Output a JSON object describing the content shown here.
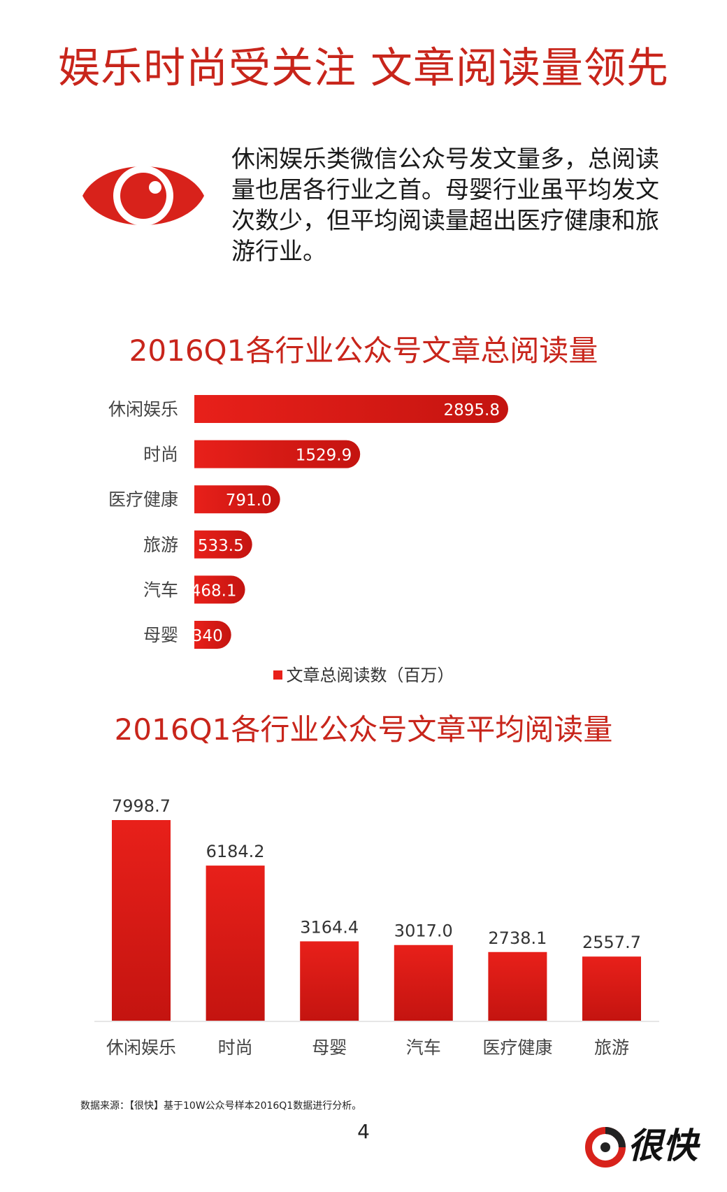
{
  "title": "娱乐时尚受关注 文章阅读量领先",
  "intro": "休闲娱乐类微信公众号发文量多，总阅读量也居各行业之首。母婴行业虽平均发文次数少，但平均阅读量超出医疗健康和旅游行业。",
  "colors": {
    "accent": "#c8251b",
    "bar_red": "#e8201a",
    "bar_dark": "#c41410"
  },
  "icons": {
    "eye": "eye-icon",
    "logo": "hengkuai-logo-icon"
  },
  "chart_data": [
    {
      "type": "bar",
      "orientation": "horizontal",
      "title": "2016Q1各行业公众号文章总阅读量",
      "categories": [
        "休闲娱乐",
        "时尚",
        "医疗健康",
        "旅游",
        "汽车",
        "母婴"
      ],
      "values": [
        2895.8,
        1529.9,
        791.0,
        533.5,
        468.1,
        340
      ],
      "value_labels": [
        "2895.8",
        "1529.9",
        "791.0",
        "533.5",
        "468.1",
        "340"
      ],
      "series_name": "文章总阅读数（百万）",
      "legend_position": "bottom",
      "xlim": [
        0,
        2895.8
      ],
      "grid": false
    },
    {
      "type": "bar",
      "orientation": "vertical",
      "title": "2016Q1各行业公众号文章平均阅读量",
      "categories": [
        "休闲娱乐",
        "时尚",
        "母婴",
        "汽车",
        "医疗健康",
        "旅游"
      ],
      "values": [
        7998.7,
        6184.2,
        3164.4,
        3017.0,
        2738.1,
        2557.7
      ],
      "value_labels": [
        "7998.7",
        "6184.2",
        "3164.4",
        "3017.0",
        "2738.1",
        "2557.7"
      ],
      "ylim": [
        0,
        7998.7
      ],
      "grid": false
    }
  ],
  "footer": {
    "source": "数据来源：【很快】基于10W公众号样本2016Q1数据进行分析。",
    "page_number": "4",
    "logo_text": "很快"
  }
}
